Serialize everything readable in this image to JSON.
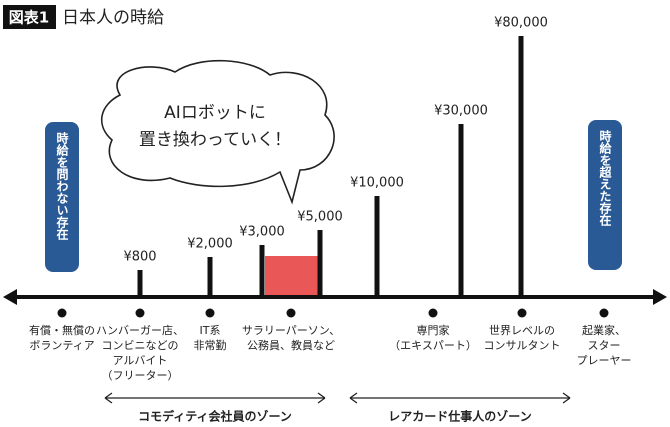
{
  "header": {
    "badge": "図表1",
    "title": "日本人の時給"
  },
  "bubble": {
    "lines": [
      "AIロボットに",
      "置き換わっていく！"
    ]
  },
  "left_box": "時給を問わない存在",
  "right_box": "時給を超えた存在",
  "wages": [
    "¥800",
    "¥2,000",
    "¥3,000",
    "¥5,000",
    "¥10,000",
    "¥30,000",
    "¥80,000"
  ],
  "items": [
    {
      "lines": [
        "有償・無償の",
        "ボランティア"
      ]
    },
    {
      "lines": [
        "ハンバーガー店、",
        "コンビニなどの",
        "アルバイト",
        "（フリーター）"
      ]
    },
    {
      "lines": [
        "IT系",
        "非常勤"
      ]
    },
    {
      "lines": [
        "サラリーパーソン、",
        "公務員、教員など"
      ]
    },
    {
      "lines": [
        "専門家",
        "（エキスパート）"
      ]
    },
    {
      "lines": [
        "世界レベルの",
        "コンサルタント"
      ]
    },
    {
      "lines": [
        "起業家、",
        "スター",
        "プレーヤー"
      ]
    }
  ],
  "zones": [
    "コモディティ会社員のゾーン",
    "レアカード仕事人のゾーン"
  ]
}
